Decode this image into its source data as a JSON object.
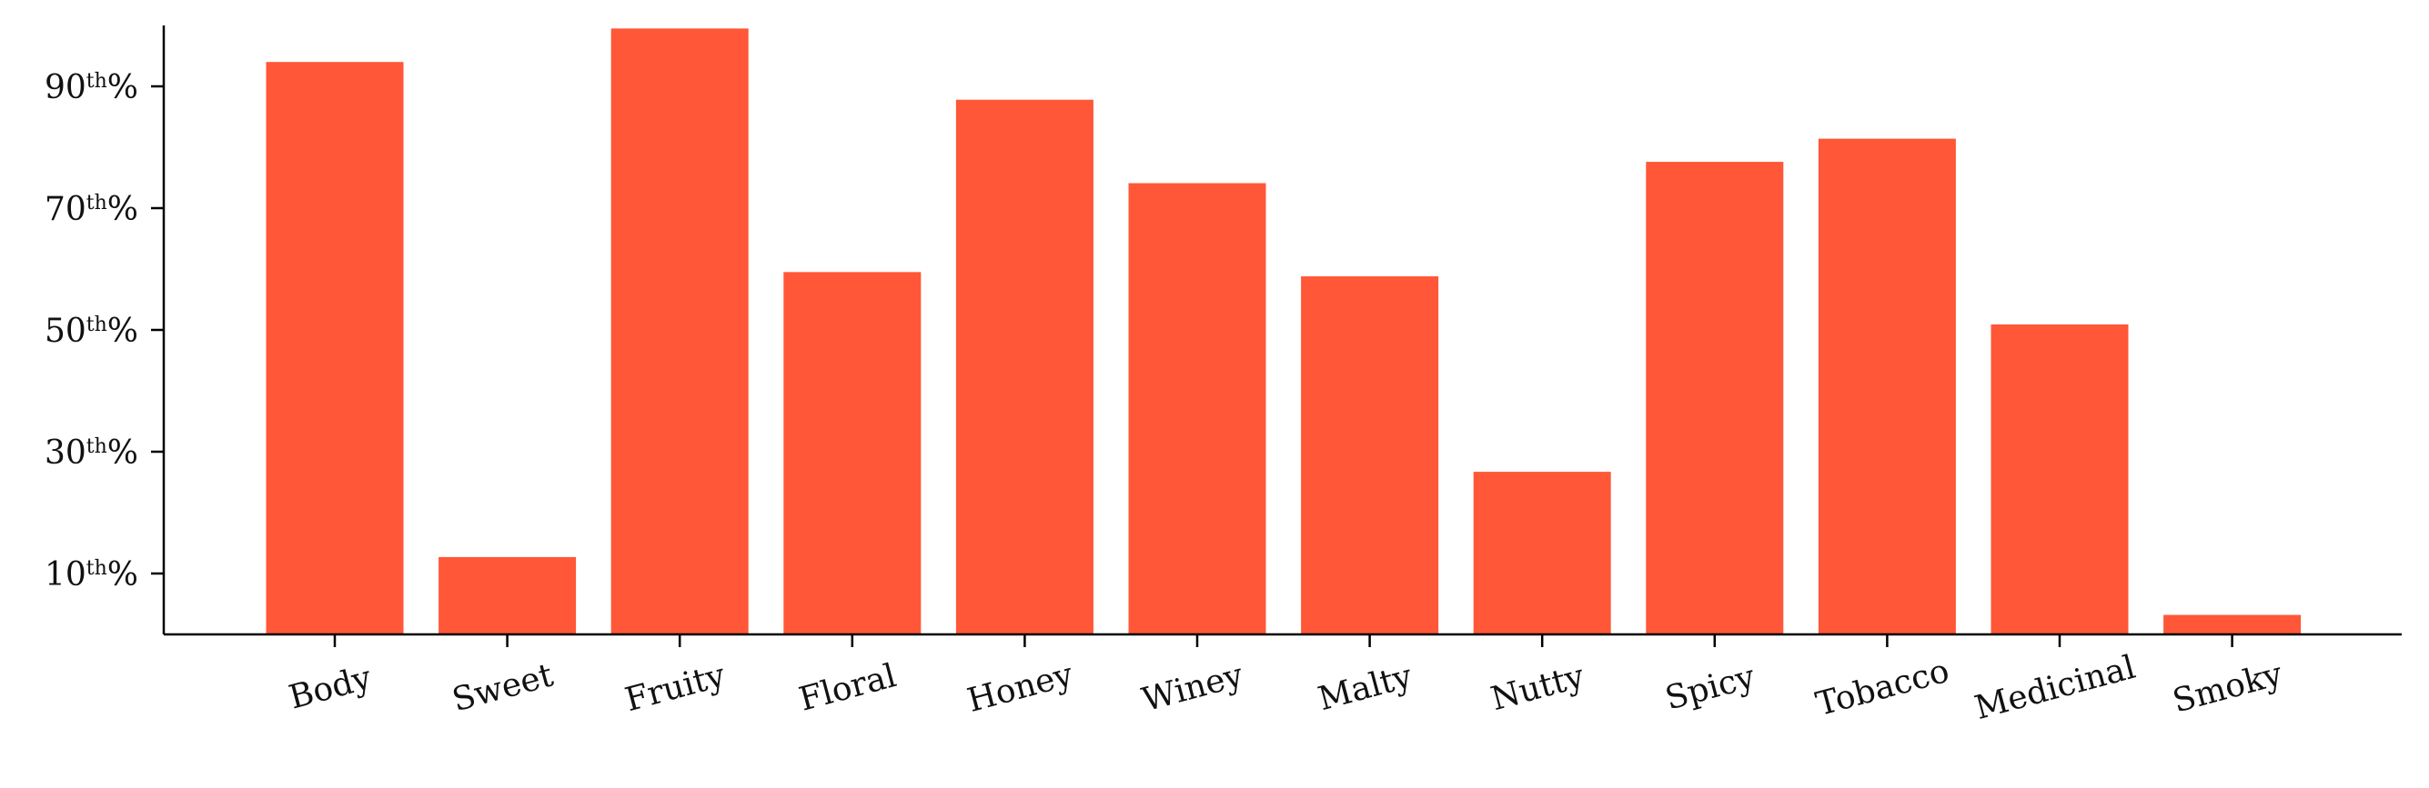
{
  "chart_data": {
    "type": "bar",
    "categories": [
      "Body",
      "Sweet",
      "Fruity",
      "Floral",
      "Honey",
      "Winey",
      "Malty",
      "Nutty",
      "Spicy",
      "Tobacco",
      "Medicinal",
      "Smoky"
    ],
    "values": [
      94,
      12.7,
      99.5,
      59.5,
      87.8,
      74.1,
      58.8,
      26.7,
      77.6,
      81.4,
      50.9,
      3.2
    ],
    "bar_color": "#ff5737",
    "ylim": [
      0,
      100
    ],
    "y_ticks": [
      {
        "value": 10,
        "number": "10",
        "sup": "th",
        "suffix": "%"
      },
      {
        "value": 30,
        "number": "30",
        "sup": "th",
        "suffix": "%"
      },
      {
        "value": 50,
        "number": "50",
        "sup": "th",
        "suffix": "%"
      },
      {
        "value": 70,
        "number": "70",
        "sup": "th",
        "suffix": "%"
      },
      {
        "value": 90,
        "number": "90",
        "sup": "th",
        "suffix": "%"
      }
    ],
    "title": "",
    "xlabel": "",
    "ylabel": "",
    "grid": false,
    "legend": "none"
  }
}
